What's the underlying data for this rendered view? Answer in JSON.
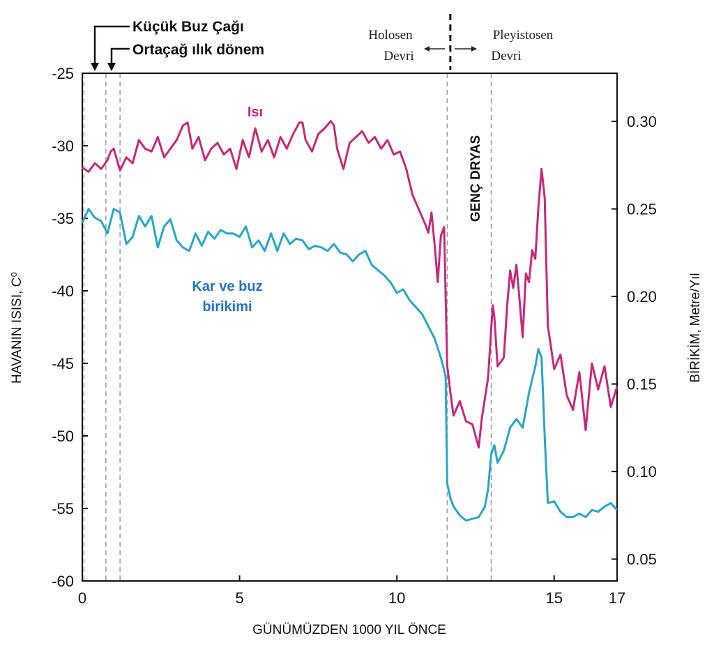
{
  "chart_data": {
    "type": "line",
    "xlabel": "GÜNÜMÜZDEN 1000 YIL ÖNCE",
    "ylabel_left": "HAVANIN ISISI, C⁰",
    "ylabel_right": "BİRİKİM, Metre/Yıl",
    "xlim": [
      0,
      17
    ],
    "ylim_left": [
      -60,
      -25
    ],
    "ylim_right": [
      0.0375,
      0.3275
    ],
    "x_ticks": [
      "0",
      "5",
      "10",
      "15",
      "17"
    ],
    "y_left_ticks": [
      "-25",
      "-30",
      "-35",
      "-40",
      "-45",
      "-50",
      "-55",
      "-60"
    ],
    "y_right_ticks": [
      "0.30",
      "0.25",
      "0.20",
      "0.15",
      "0.10",
      "0.05"
    ],
    "series": [
      {
        "name": "Isı",
        "axis": "left",
        "color": "#c8287a",
        "x": [
          0,
          0.2,
          0.4,
          0.6,
          0.8,
          0.9,
          1.0,
          1.2,
          1.4,
          1.6,
          1.8,
          2.0,
          2.2,
          2.4,
          2.6,
          2.8,
          3.0,
          3.2,
          3.35,
          3.5,
          3.7,
          3.9,
          4.1,
          4.3,
          4.5,
          4.7,
          4.9,
          5.1,
          5.3,
          5.5,
          5.7,
          5.9,
          6.1,
          6.3,
          6.5,
          6.7,
          6.9,
          7.0,
          7.1,
          7.3,
          7.5,
          7.7,
          7.9,
          8.0,
          8.1,
          8.3,
          8.5,
          8.7,
          8.9,
          9.1,
          9.3,
          9.5,
          9.7,
          9.9,
          10.1,
          10.3,
          10.5,
          10.7,
          10.9,
          11.0,
          11.1,
          11.2,
          11.3,
          11.4,
          11.5,
          11.6,
          11.65,
          11.7,
          11.8,
          12.0,
          12.2,
          12.4,
          12.6,
          12.7,
          12.8,
          12.9,
          13.0,
          13.05,
          13.1,
          13.2,
          13.4,
          13.5,
          13.6,
          13.7,
          13.8,
          13.9,
          14.0,
          14.1,
          14.2,
          14.3,
          14.4,
          14.5,
          14.6,
          14.7,
          14.8,
          15.0,
          15.2,
          15.4,
          15.6,
          15.8,
          16.0,
          16.2,
          16.4,
          16.6,
          16.8,
          17.0
        ],
        "values": [
          -31.5,
          -31.8,
          -31.2,
          -31.6,
          -31.0,
          -30.4,
          -30.2,
          -31.7,
          -30.8,
          -31.2,
          -29.6,
          -30.2,
          -30.4,
          -29.4,
          -30.8,
          -30.2,
          -29.6,
          -28.6,
          -28.4,
          -30.2,
          -29.4,
          -31.0,
          -30.2,
          -29.8,
          -30.6,
          -30.2,
          -31.6,
          -29.6,
          -30.8,
          -28.8,
          -30.4,
          -29.6,
          -30.8,
          -29.4,
          -30.2,
          -29.2,
          -28.4,
          -28.4,
          -29.6,
          -30.4,
          -29.2,
          -28.8,
          -28.3,
          -28.6,
          -30.2,
          -31.6,
          -29.8,
          -29.4,
          -29.0,
          -29.8,
          -29.4,
          -30.2,
          -29.6,
          -30.6,
          -30.4,
          -31.6,
          -33.4,
          -34.4,
          -35.4,
          -36.0,
          -34.6,
          -36.8,
          -39.4,
          -36.2,
          -35.6,
          -45.2,
          -46.0,
          -47.0,
          -48.6,
          -47.6,
          -49.0,
          -49.2,
          -50.8,
          -48.8,
          -47.4,
          -46.0,
          -42.6,
          -41.0,
          -41.8,
          -45.2,
          -44.6,
          -41.2,
          -38.6,
          -39.8,
          -38.2,
          -40.6,
          -43.2,
          -38.8,
          -39.4,
          -37.2,
          -37.8,
          -34.2,
          -31.6,
          -33.6,
          -42.4,
          -45.4,
          -44.4,
          -47.2,
          -48.2,
          -45.6,
          -49.6,
          -45.0,
          -46.8,
          -45.2,
          -48.0,
          -46.6
        ]
      },
      {
        "name": "Kar ve buz birikimi",
        "axis": "right",
        "color": "#27a6cc",
        "x": [
          0,
          0.2,
          0.4,
          0.6,
          0.8,
          1.0,
          1.2,
          1.4,
          1.6,
          1.8,
          2.0,
          2.2,
          2.4,
          2.6,
          2.8,
          3.0,
          3.2,
          3.4,
          3.6,
          3.8,
          4.0,
          4.2,
          4.4,
          4.6,
          4.8,
          5.0,
          5.2,
          5.4,
          5.6,
          5.8,
          6.0,
          6.2,
          6.4,
          6.6,
          6.8,
          7.0,
          7.2,
          7.4,
          7.6,
          7.8,
          8.0,
          8.2,
          8.4,
          8.6,
          8.8,
          9.0,
          9.2,
          9.4,
          9.6,
          9.8,
          10.0,
          10.2,
          10.4,
          10.6,
          10.8,
          11.0,
          11.2,
          11.4,
          11.5,
          11.55,
          11.6,
          11.7,
          11.8,
          12.0,
          12.2,
          12.4,
          12.6,
          12.8,
          12.9,
          13.0,
          13.1,
          13.2,
          13.4,
          13.6,
          13.8,
          14.0,
          14.2,
          14.4,
          14.5,
          14.6,
          14.7,
          14.8,
          15.0,
          15.2,
          15.4,
          15.6,
          15.8,
          16.0,
          16.2,
          16.4,
          16.6,
          16.8,
          17.0
        ],
        "values": [
          0.242,
          0.25,
          0.245,
          0.243,
          0.236,
          0.25,
          0.248,
          0.23,
          0.234,
          0.246,
          0.24,
          0.246,
          0.228,
          0.24,
          0.244,
          0.232,
          0.228,
          0.226,
          0.236,
          0.229,
          0.237,
          0.233,
          0.238,
          0.236,
          0.236,
          0.234,
          0.24,
          0.228,
          0.232,
          0.226,
          0.236,
          0.226,
          0.236,
          0.23,
          0.233,
          0.232,
          0.227,
          0.229,
          0.228,
          0.226,
          0.23,
          0.225,
          0.224,
          0.22,
          0.224,
          0.226,
          0.218,
          0.215,
          0.212,
          0.208,
          0.202,
          0.204,
          0.198,
          0.194,
          0.19,
          0.183,
          0.176,
          0.165,
          0.158,
          0.154,
          0.093,
          0.085,
          0.08,
          0.075,
          0.072,
          0.073,
          0.074,
          0.08,
          0.09,
          0.11,
          0.115,
          0.105,
          0.112,
          0.125,
          0.13,
          0.125,
          0.145,
          0.16,
          0.17,
          0.165,
          0.12,
          0.082,
          0.083,
          0.077,
          0.074,
          0.074,
          0.076,
          0.074,
          0.078,
          0.077,
          0.08,
          0.082,
          0.078
        ]
      }
    ],
    "vlines_dashed": [
      0.05,
      0.75,
      1.2,
      11.6,
      13.0
    ],
    "vline_bold": 11.7,
    "annotations": {
      "kucuk_buz_cagi": "Küçük Buz Çağı",
      "ortacag": "Ortaçağ ılık dönem",
      "holosen_1": "Holosen",
      "holosen_2": "Devri",
      "pleyistosen_1": "Pleyistosen",
      "pleyistosen_2": "Devri",
      "genc_dryas": "GENÇ DRYAS",
      "isi_label": "Isı",
      "kar_label_1": "Kar ve buz",
      "kar_label_2": "birikimi"
    }
  }
}
